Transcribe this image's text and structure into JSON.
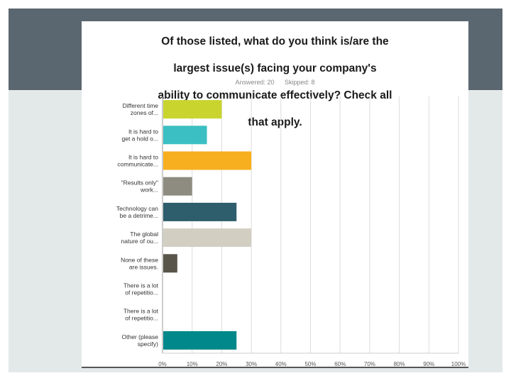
{
  "chart_data": {
    "type": "bar",
    "orientation": "horizontal",
    "title": "Of those listed, what do you think is/are the largest issue(s) facing your company's ability to communicate effectively? Check all that apply.",
    "title_lines": [
      "Of those listed, what do you think is/are the",
      "largest issue(s) facing your company's",
      "ability to communicate effectively? Check all",
      "that apply."
    ],
    "answered_label": "Answered: 20",
    "skipped_label": "Skipped: 8",
    "categories": [
      [
        "Different time",
        "zones of..."
      ],
      [
        "It is hard to",
        "get a hold o..."
      ],
      [
        "It is hard to",
        "communicate..."
      ],
      [
        "\"Results only\"",
        "work..."
      ],
      [
        "Technology can",
        "be a detrime..."
      ],
      [
        "The global",
        "nature of ou..."
      ],
      [
        "None of these",
        "are issues."
      ],
      [
        "There is a lot",
        "of repetitio..."
      ],
      [
        "There is a lot",
        "of repetitio..."
      ],
      [
        "Other (please",
        "specify)"
      ]
    ],
    "values": [
      20,
      15,
      30,
      10,
      25,
      30,
      5,
      0,
      0,
      25
    ],
    "colors": [
      "#c9d42f",
      "#3bbfc2",
      "#f7ae1f",
      "#8e8c80",
      "#2e5d6b",
      "#d2cfc2",
      "#59554a",
      "#cccccc",
      "#cccccc",
      "#00888a"
    ],
    "xlim": [
      0,
      100
    ],
    "xticks": [
      0,
      10,
      20,
      30,
      40,
      50,
      60,
      70,
      80,
      90,
      100
    ],
    "xtick_labels": [
      "0%",
      "10%",
      "20%",
      "30%",
      "40%",
      "50%",
      "60%",
      "70%",
      "80%",
      "90%",
      "100%"
    ],
    "grid": true
  }
}
